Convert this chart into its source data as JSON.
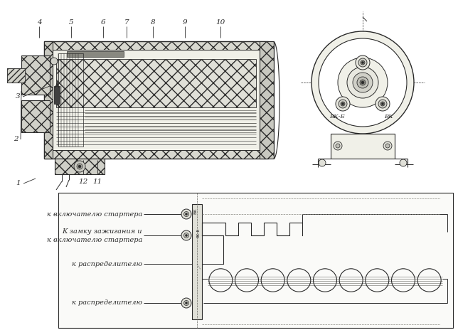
{
  "bg_color": "#ffffff",
  "line_color": "#2a2a2a",
  "text_vk_b": "ВК-Б",
  "text_vk": "ВК",
  "labels_top": [
    "4",
    "5",
    "6",
    "7",
    "8",
    "9",
    "10"
  ],
  "xs_top": [
    55,
    100,
    145,
    178,
    215,
    260,
    310
  ],
  "label1": "1",
  "label2": "2",
  "label3": "3",
  "label11": "11",
  "label12": "12",
  "conn_label1": "к включателю стартера",
  "conn_label2a": "К замку зажигания и",
  "conn_label2b": "к включателю стартера",
  "conn_label3": "к распределителю",
  "conn_label4": "к распределителю",
  "font_size_label": 7.5,
  "font_size_conn": 7.0,
  "font_size_term": 6.0
}
